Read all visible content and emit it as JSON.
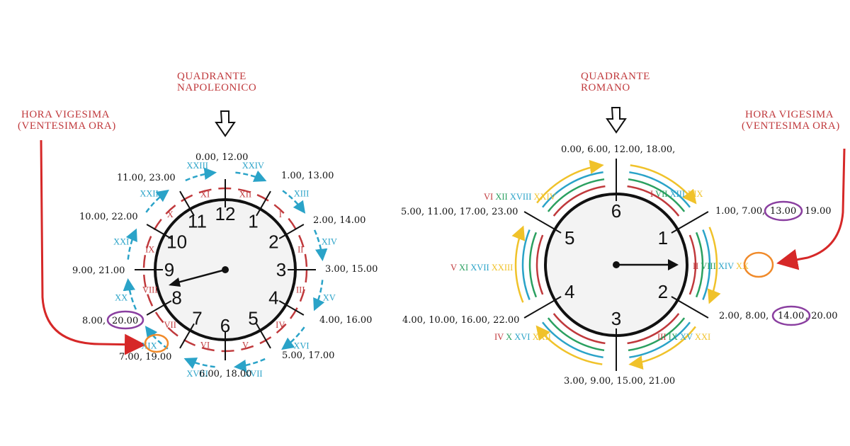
{
  "left": {
    "title_line1": "QUADRANTE",
    "title_line2": "NAPOLEONICO",
    "note_line1": "HORA VIGESIMA",
    "note_line2": "(VENTESIMA ORA)",
    "dial_numbers": [
      "12",
      "1",
      "2",
      "3",
      "4",
      "5",
      "6",
      "7",
      "8",
      "9",
      "10",
      "11"
    ],
    "roman_outer": [
      "XXIV",
      "XIII",
      "XIV",
      "XV",
      "XVI",
      "XVII",
      "XVIII",
      "XIX",
      "XX",
      "XXI",
      "XXII",
      "XXIII"
    ],
    "roman_inner": [
      "XII",
      "I",
      "II",
      "III",
      "IV",
      "V",
      "VI",
      "VII",
      "VIII",
      "IX",
      "X",
      "XI"
    ],
    "hour_labels": [
      "0.00,  12.00",
      "1.00, 13.00",
      "2.00, 14.00",
      "3.00, 15.00",
      "4.00, 16.00",
      "5.00, 17.00",
      "6.00, 18.00",
      "7.00, 19.00",
      "20.00",
      "9.00, 21.00",
      "10.00, 22.00",
      "11.00, 23.00"
    ],
    "label8_prefix": "8.00,",
    "highlight_xx": "XX",
    "colors": {
      "outer": "#2aa3c8",
      "inner": "#c0393c",
      "circle_xx": "#f08a2a",
      "circle_20": "#8a3fa0"
    }
  },
  "right": {
    "title_line1": "QUADRANTE",
    "title_line2": "ROMANO",
    "note_line1": "HORA VIGESIMA",
    "note_line2": "(VENTESIMA ORA)",
    "dial_numbers": [
      "6",
      "1",
      "2",
      "3",
      "4",
      "5"
    ],
    "hour_labels": [
      "0.00, 6.00, 12.00, 18.00,",
      "1.00, 7.00,",
      "13.00",
      ", 19.00",
      "2.00, 8.00,",
      "14.00",
      ", 20.00",
      "3.00, 9.00, 15.00, 21.00",
      "4.00, 10.00, 16.00, 22.00",
      "5.00, 11.00, 17.00, 23.00"
    ],
    "romans": {
      "top": [
        "I",
        "VII",
        "XIII",
        "XIX"
      ],
      "right": [
        "II",
        "VIII",
        "XIV",
        "XX"
      ],
      "br": [
        "III",
        "IX",
        "XV",
        "XXI"
      ],
      "bl": [
        "IV",
        "X",
        "XVI",
        "XXII"
      ],
      "left": [
        "V",
        "XI",
        "XVII",
        "XXIII"
      ],
      "tl": [
        "VI",
        "XII",
        "XVIII",
        "XXIV"
      ]
    },
    "colors": {
      "ring1": "#c0393c",
      "ring2": "#2aa060",
      "ring3": "#2aa3c8",
      "ring4": "#f0c22a",
      "circle_xx": "#f08a2a",
      "circle_13": "#8a3fa0"
    }
  }
}
